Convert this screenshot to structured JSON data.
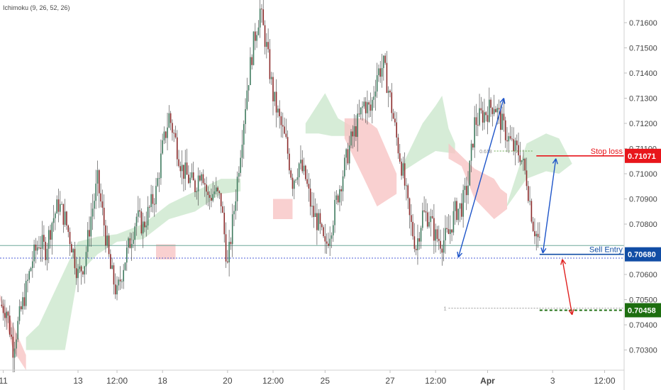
{
  "indicator": {
    "label": "Ichimoku (9, 26, 52, 26)"
  },
  "chart_data": {
    "type": "candlestick",
    "ylim": [
      0.7022,
      0.7169
    ],
    "y_ticks": [
      "0.71600",
      "0.71500",
      "0.71400",
      "0.71300",
      "0.71200",
      "0.71100",
      "0.71000",
      "0.70900",
      "0.70800",
      "0.70600",
      "0.70500",
      "0.70400",
      "0.70300"
    ],
    "x_ticks": [
      "11",
      "13",
      "12:00",
      "18",
      "20",
      "12:00",
      "25",
      "27",
      "12:00",
      "Apr",
      "3",
      "12:00"
    ],
    "x_tick_pos": [
      0.5,
      12,
      18,
      25,
      35,
      42,
      50,
      60,
      67,
      75,
      85,
      93
    ],
    "x_range": [
      0,
      96
    ],
    "close_path": [
      [
        0,
        0.7048
      ],
      [
        1,
        0.7046
      ],
      [
        2,
        0.7031
      ],
      [
        3,
        0.7043
      ],
      [
        4,
        0.7054
      ],
      [
        5,
        0.7066
      ],
      [
        6,
        0.7073
      ],
      [
        7,
        0.707
      ],
      [
        8,
        0.7081
      ],
      [
        9,
        0.7088
      ],
      [
        10,
        0.7082
      ],
      [
        11,
        0.7072
      ],
      [
        12,
        0.706
      ],
      [
        13,
        0.7065
      ],
      [
        14,
        0.7083
      ],
      [
        15,
        0.7097
      ],
      [
        16,
        0.708
      ],
      [
        17,
        0.7062
      ],
      [
        18,
        0.7052
      ],
      [
        19,
        0.7064
      ],
      [
        20,
        0.7073
      ],
      [
        21,
        0.7083
      ],
      [
        22,
        0.7079
      ],
      [
        23,
        0.7086
      ],
      [
        24,
        0.7093
      ],
      [
        25,
        0.711
      ],
      [
        26,
        0.7123
      ],
      [
        27,
        0.7113
      ],
      [
        28,
        0.7102
      ],
      [
        29,
        0.7098
      ],
      [
        30,
        0.7095
      ],
      [
        31,
        0.7103
      ],
      [
        32,
        0.709
      ],
      [
        33,
        0.7093
      ],
      [
        34,
        0.7089
      ],
      [
        35,
        0.7063
      ],
      [
        36,
        0.7086
      ],
      [
        37,
        0.711
      ],
      [
        38,
        0.7134
      ],
      [
        39,
        0.7152
      ],
      [
        40,
        0.7165
      ],
      [
        41,
        0.715
      ],
      [
        42,
        0.7131
      ],
      [
        43,
        0.7121
      ],
      [
        44,
        0.7112
      ],
      [
        45,
        0.7097
      ],
      [
        46,
        0.7104
      ],
      [
        47,
        0.7098
      ],
      [
        48,
        0.7085
      ],
      [
        49,
        0.708
      ],
      [
        50,
        0.707
      ],
      [
        51,
        0.708
      ],
      [
        52,
        0.7092
      ],
      [
        53,
        0.7103
      ],
      [
        54,
        0.7113
      ],
      [
        55,
        0.712
      ],
      [
        56,
        0.7128
      ],
      [
        57,
        0.7125
      ],
      [
        58,
        0.714
      ],
      [
        59,
        0.7143
      ],
      [
        60,
        0.713
      ],
      [
        61,
        0.7114
      ],
      [
        62,
        0.71
      ],
      [
        63,
        0.7082
      ],
      [
        64,
        0.7071
      ],
      [
        65,
        0.7084
      ],
      [
        66,
        0.7083
      ],
      [
        67,
        0.7075
      ],
      [
        68,
        0.7073
      ],
      [
        69,
        0.7076
      ],
      [
        70,
        0.7085
      ],
      [
        71,
        0.7087
      ],
      [
        72,
        0.7096
      ],
      [
        73,
        0.712
      ],
      [
        74,
        0.7123
      ],
      [
        75,
        0.7125
      ],
      [
        76,
        0.7128
      ],
      [
        77,
        0.7121
      ],
      [
        78,
        0.7115
      ],
      [
        79,
        0.711
      ],
      [
        80,
        0.7108
      ],
      [
        81,
        0.7098
      ],
      [
        82,
        0.708
      ],
      [
        83,
        0.7072
      ]
    ],
    "cloud_green": [
      [
        [
          4,
          0.703
        ],
        [
          10,
          0.703
        ],
        [
          12,
          0.706
        ],
        [
          15,
          0.7068
        ],
        [
          18,
          0.7073
        ],
        [
          22,
          0.7074
        ],
        [
          26,
          0.7082
        ],
        [
          30,
          0.7085
        ],
        [
          34,
          0.7092
        ],
        [
          37,
          0.7093
        ],
        [
          37,
          0.7098
        ],
        [
          34,
          0.7098
        ],
        [
          30,
          0.7093
        ],
        [
          26,
          0.7088
        ],
        [
          22,
          0.708
        ],
        [
          18,
          0.7076
        ],
        [
          15,
          0.7075
        ],
        [
          12,
          0.7073
        ],
        [
          10,
          0.7062
        ],
        [
          6,
          0.704
        ],
        [
          4,
          0.7035
        ]
      ],
      [
        [
          47,
          0.712
        ],
        [
          50,
          0.7132
        ],
        [
          52,
          0.7122
        ],
        [
          54,
          0.7119
        ],
        [
          54,
          0.7115
        ],
        [
          51,
          0.7115
        ],
        [
          49,
          0.7116
        ],
        [
          47,
          0.7116
        ]
      ],
      [
        [
          62,
          0.7104
        ],
        [
          65,
          0.712
        ],
        [
          67,
          0.7127
        ],
        [
          68,
          0.7131
        ],
        [
          69,
          0.7118
        ],
        [
          70,
          0.7112
        ],
        [
          70,
          0.7108
        ],
        [
          67,
          0.7109
        ],
        [
          65,
          0.7106
        ],
        [
          62,
          0.7101
        ]
      ],
      [
        [
          78,
          0.7088
        ],
        [
          81,
          0.7112
        ],
        [
          84,
          0.7116
        ],
        [
          86,
          0.7114
        ],
        [
          88,
          0.7104
        ],
        [
          86,
          0.71
        ],
        [
          84,
          0.7101
        ],
        [
          81,
          0.7098
        ],
        [
          78,
          0.7087
        ]
      ]
    ],
    "cloud_red": [
      [
        [
          0,
          0.705
        ],
        [
          2,
          0.703
        ],
        [
          4,
          0.7022
        ],
        [
          4,
          0.7028
        ],
        [
          2,
          0.704
        ],
        [
          0,
          0.7052
        ]
      ],
      [
        [
          24,
          0.7072
        ],
        [
          27,
          0.7072
        ],
        [
          27,
          0.7066
        ],
        [
          24,
          0.7066
        ]
      ],
      [
        [
          42,
          0.709
        ],
        [
          45,
          0.709
        ],
        [
          45,
          0.7082
        ],
        [
          42,
          0.7082
        ]
      ],
      [
        [
          53,
          0.7122
        ],
        [
          56,
          0.7122
        ],
        [
          58,
          0.7118
        ],
        [
          61,
          0.71
        ],
        [
          61,
          0.7092
        ],
        [
          58,
          0.7087
        ],
        [
          56,
          0.7098
        ],
        [
          53,
          0.7114
        ]
      ],
      [
        [
          69,
          0.7112
        ],
        [
          71,
          0.7107
        ],
        [
          73,
          0.7102
        ],
        [
          76,
          0.7098
        ],
        [
          77,
          0.7094
        ],
        [
          78,
          0.7092
        ],
        [
          78,
          0.7086
        ],
        [
          76,
          0.7082
        ],
        [
          73,
          0.709
        ],
        [
          71,
          0.7103
        ],
        [
          69,
          0.7106
        ]
      ]
    ],
    "reference_lines": [
      {
        "name": "horizontal-line-upper",
        "y": 0.70715,
        "style": "solid",
        "color": "#6fa79a"
      },
      {
        "name": "horizontal-line-lower",
        "y": 0.70665,
        "style": "dotted",
        "color": "#4b5ed8"
      }
    ],
    "levels": [
      {
        "key": "stop",
        "label": "Stop loss",
        "price": "0.71071",
        "y": 0.71071,
        "color": "#e8151b",
        "x_from": 82.5,
        "x_to": 96,
        "style": "solid"
      },
      {
        "key": "entry",
        "label": "Sell Entry",
        "price": "0.70680",
        "y": 0.7068,
        "color": "#114da5",
        "x_from": 83,
        "x_to": 96,
        "style": "solid"
      },
      {
        "key": "target",
        "label": "",
        "price": "0.70458",
        "y": 0.70458,
        "color": "#1d6e10",
        "x_from": 83,
        "x_to": 96,
        "style": "dashed"
      }
    ],
    "fib": [
      {
        "label": "0.618",
        "y": 0.7109,
        "x_from": 76,
        "x_to": 82,
        "color": "#6aa84f"
      },
      {
        "label": "1",
        "y": 0.70466,
        "x_from": 69,
        "x_to": 96,
        "color": "#999999"
      }
    ],
    "arrows": [
      {
        "name": "up-arrow-1",
        "from": [
          70.5,
          0.70668
        ],
        "to": [
          77.5,
          0.713
        ],
        "color": "#1e55c9"
      },
      {
        "name": "up-arrow-2",
        "from": [
          83.5,
          0.70685
        ],
        "to": [
          85.5,
          0.7106
        ],
        "color": "#1e55c9"
      },
      {
        "name": "down-arrow",
        "from": [
          86.5,
          0.7066
        ],
        "to": [
          88,
          0.7044
        ],
        "color": "#e0201f"
      }
    ]
  }
}
